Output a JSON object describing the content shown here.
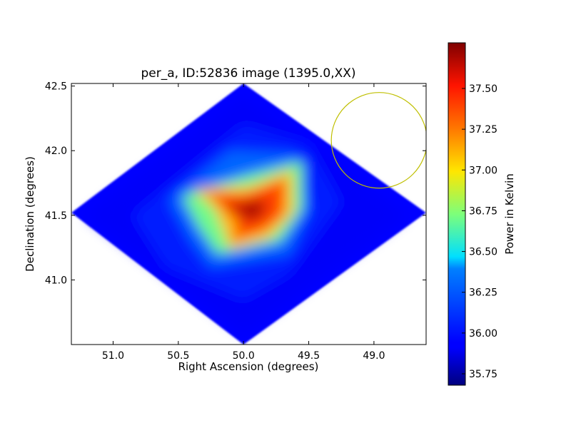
{
  "chart_data": {
    "type": "heatmap",
    "title": "per_a, ID:52836 image (1395.0,XX)",
    "xlabel": "Right Ascension (degrees)",
    "ylabel": "Declination (degrees)",
    "xlim": [
      51.32,
      48.6
    ],
    "ylim": [
      40.5,
      42.52
    ],
    "x_ticks": [
      51.0,
      50.5,
      50.0,
      49.5,
      49.0
    ],
    "x_tick_labels": [
      "51.0",
      "50.5",
      "50.0",
      "49.5",
      "49.0"
    ],
    "y_ticks": [
      41.0,
      41.5,
      42.0,
      42.5
    ],
    "y_tick_labels": [
      "41.0",
      "41.5",
      "42.0",
      "42.5"
    ],
    "grid": false,
    "colormap": "jet",
    "colorbar": {
      "label": "Power in Kelvin",
      "range": [
        35.68,
        37.78
      ],
      "ticks": [
        35.75,
        36.0,
        36.25,
        36.5,
        36.75,
        37.0,
        37.25,
        37.5
      ],
      "tick_labels": [
        "35.75",
        "36.00",
        "36.25",
        "36.50",
        "36.75",
        "37.00",
        "37.25",
        "37.50"
      ]
    },
    "map_footprint_vertices": [
      {
        "ra": 51.32,
        "dec": 41.52
      },
      {
        "ra": 50.0,
        "dec": 42.52
      },
      {
        "ra": 48.6,
        "dec": 41.52
      },
      {
        "ra": 50.0,
        "dec": 40.5
      }
    ],
    "contour_levels": [
      {
        "value": 35.9,
        "vertices": [
          [
            51.2,
            41.5
          ],
          [
            50.0,
            42.4
          ],
          [
            48.75,
            41.5
          ],
          [
            50.0,
            40.6
          ]
        ]
      },
      {
        "value": 36.05,
        "vertices": [
          [
            50.85,
            41.5
          ],
          [
            50.0,
            42.2
          ],
          [
            49.5,
            42.05
          ],
          [
            49.25,
            41.6
          ],
          [
            49.65,
            41.05
          ],
          [
            50.0,
            40.85
          ],
          [
            50.6,
            41.1
          ]
        ]
      },
      {
        "value": 36.3,
        "vertices": [
          [
            50.57,
            41.62
          ],
          [
            50.1,
            42.0
          ],
          [
            49.6,
            41.97
          ],
          [
            49.5,
            41.55
          ],
          [
            49.65,
            41.2
          ],
          [
            50.25,
            41.1
          ],
          [
            50.4,
            41.3
          ]
        ]
      },
      {
        "value": 36.7,
        "vertices": [
          [
            50.47,
            41.65
          ],
          [
            50.0,
            41.8
          ],
          [
            49.55,
            41.92
          ],
          [
            49.55,
            41.55
          ],
          [
            49.72,
            41.3
          ],
          [
            50.2,
            41.2
          ],
          [
            50.35,
            41.42
          ]
        ]
      },
      {
        "value": 37.1,
        "vertices": [
          [
            50.38,
            41.7
          ],
          [
            49.95,
            41.72
          ],
          [
            49.63,
            41.85
          ],
          [
            49.62,
            41.53
          ],
          [
            49.8,
            41.33
          ],
          [
            50.1,
            41.24
          ],
          [
            50.14,
            41.35
          ],
          [
            50.22,
            41.55
          ]
        ]
      },
      {
        "value": 37.4,
        "vertices": [
          [
            50.28,
            41.68
          ],
          [
            50.0,
            41.66
          ],
          [
            49.68,
            41.78
          ],
          [
            49.7,
            41.5
          ],
          [
            49.85,
            41.38
          ],
          [
            50.1,
            41.3
          ],
          [
            50.04,
            41.42
          ],
          [
            50.12,
            41.52
          ]
        ]
      },
      {
        "value": 37.7,
        "vertices": [
          [
            50.14,
            41.57
          ],
          [
            49.96,
            41.6
          ],
          [
            49.83,
            41.62
          ],
          [
            49.86,
            41.49
          ],
          [
            50.03,
            41.45
          ],
          [
            49.98,
            41.5
          ]
        ]
      }
    ],
    "annotations": [
      {
        "type": "circle",
        "center_ra": 48.96,
        "center_dec": 42.08,
        "radius_deg": 0.37,
        "color": "#bfbf00"
      }
    ]
  }
}
